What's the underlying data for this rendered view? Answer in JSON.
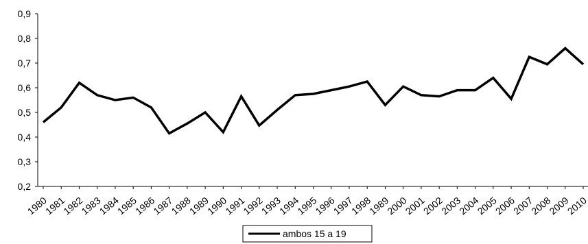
{
  "chart_data": {
    "type": "line",
    "title": "",
    "xlabel": "",
    "ylabel": "",
    "ylim": [
      0.2,
      0.9
    ],
    "yticks": [
      "0,2",
      "0,3",
      "0,4",
      "0,5",
      "0,6",
      "0,7",
      "0,8",
      "0,9"
    ],
    "grid": false,
    "legend_position": "bottom-center",
    "categories": [
      "1980",
      "1981",
      "1982",
      "1983",
      "1984",
      "1985",
      "1986",
      "1987",
      "1988",
      "1989",
      "1990",
      "1991",
      "1992",
      "1993",
      "1994",
      "1995",
      "1996",
      "1997",
      "1998",
      "1989",
      "2000",
      "2001",
      "2002",
      "2003",
      "2004",
      "2005",
      "2006",
      "2007",
      "2008",
      "2009",
      "2010"
    ],
    "series": [
      {
        "name": "ambos 15 a 19",
        "color": "#000000",
        "values": [
          0.46,
          0.52,
          0.62,
          0.57,
          0.55,
          0.56,
          0.52,
          0.415,
          0.455,
          0.5,
          0.42,
          0.565,
          0.447,
          0.51,
          0.57,
          0.575,
          0.59,
          0.605,
          0.625,
          0.53,
          0.605,
          0.57,
          0.565,
          0.59,
          0.59,
          0.64,
          0.555,
          0.725,
          0.695,
          0.76,
          0.695
        ]
      }
    ]
  }
}
